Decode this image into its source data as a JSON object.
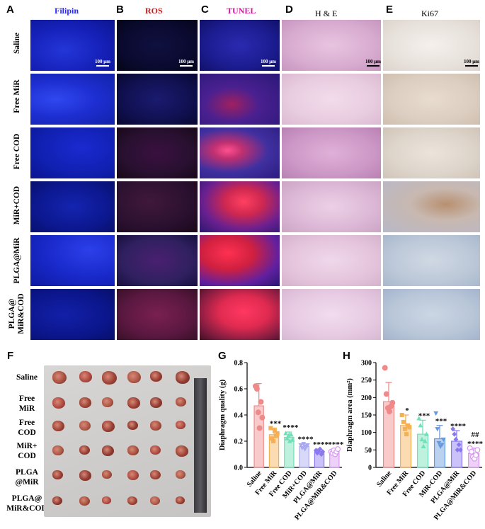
{
  "panels": {
    "A": "A",
    "B": "B",
    "C": "C",
    "D": "D",
    "E": "E",
    "F": "F",
    "G": "G",
    "H": "H"
  },
  "columns": [
    {
      "title": "Filipin",
      "color": "#2a2aff"
    },
    {
      "title": "ROS",
      "color": "#c01818"
    },
    {
      "title": "TUNEL",
      "color": "#e010a0"
    },
    {
      "title": "H & E",
      "color": "#000000"
    },
    {
      "title": "Ki67",
      "color": "#000000"
    }
  ],
  "rows": [
    "Saline",
    "Free MiR",
    "Free COD",
    "MiR+COD",
    "PLGA@MiR",
    "PLGA@ MiR&COD"
  ],
  "scale_label": "100 μm",
  "f_rows": [
    {
      "line1": "Saline",
      "line2": ""
    },
    {
      "line1": "Free",
      "line2": "MiR"
    },
    {
      "line1": "Free",
      "line2": "COD"
    },
    {
      "line1": "MiR+",
      "line2": "COD"
    },
    {
      "line1": "PLGA",
      "line2": "@MiR"
    },
    {
      "line1": "PLGA@",
      "line2": "MiR&COD"
    }
  ],
  "chart_data": [
    {
      "type": "bar",
      "panel": "G",
      "categories": [
        "Saline",
        "Free MiR",
        "Free COD",
        "MiR+COD",
        "PLGA@MiR",
        "PLGA@MiR&COD"
      ],
      "values": [
        0.47,
        0.25,
        0.23,
        0.16,
        0.12,
        0.12
      ],
      "errors": [
        0.17,
        0.05,
        0.04,
        0.02,
        0.02,
        0.02
      ],
      "points": [
        [
          0.62,
          0.6,
          0.42,
          0.3,
          0.5,
          0.38
        ],
        [
          0.3,
          0.22,
          0.2,
          0.28,
          0.24,
          0.26
        ],
        [
          0.26,
          0.22,
          0.24,
          0.2,
          0.25,
          0.21
        ],
        [
          0.17,
          0.15,
          0.18,
          0.14,
          0.16,
          0.17
        ],
        [
          0.13,
          0.11,
          0.12,
          0.14,
          0.1,
          0.12
        ],
        [
          0.12,
          0.11,
          0.13,
          0.1,
          0.12,
          0.14
        ]
      ],
      "significance": [
        "",
        "***",
        "****",
        "****",
        "****",
        "****"
      ],
      "colors": [
        "#f08a8a",
        "#f5b055",
        "#70e0b8",
        "#a9a9f0",
        "#8a78f0",
        "#d899f0"
      ],
      "ylabel": "Diaphragm quality (g)",
      "ylim": [
        0,
        0.8
      ],
      "yticks": [
        "0.0",
        "0.2",
        "0.4",
        "0.6",
        "0.8"
      ]
    },
    {
      "type": "bar",
      "panel": "H",
      "categories": [
        "Saline",
        "Free MiR",
        "Free COD",
        "MiR-COD",
        "PLGA@MiR",
        "PLGA@MiR&COD"
      ],
      "values": [
        188,
        120,
        95,
        82,
        75,
        40
      ],
      "errors": [
        55,
        30,
        40,
        38,
        30,
        15
      ],
      "points": [
        [
          285,
          210,
          170,
          160,
          175,
          185
        ],
        [
          150,
          130,
          110,
          95,
          120,
          115
        ],
        [
          140,
          120,
          80,
          60,
          75,
          95
        ],
        [
          155,
          110,
          70,
          60,
          65,
          80
        ],
        [
          110,
          95,
          80,
          50,
          65,
          50
        ],
        [
          55,
          45,
          30,
          25,
          35,
          50
        ]
      ],
      "significance": [
        "",
        "*",
        "***",
        "***",
        "****",
        "****"
      ],
      "extra_mark": "##",
      "colors": [
        "#f08a8a",
        "#f5b055",
        "#70e0b8",
        "#6699dd",
        "#8a78f0",
        "#d899f0"
      ],
      "ylabel": "Diaphragm area (mm²)",
      "ylim": [
        0,
        300
      ],
      "yticks": [
        "0",
        "50",
        "100",
        "150",
        "200",
        "250",
        "300"
      ]
    }
  ]
}
